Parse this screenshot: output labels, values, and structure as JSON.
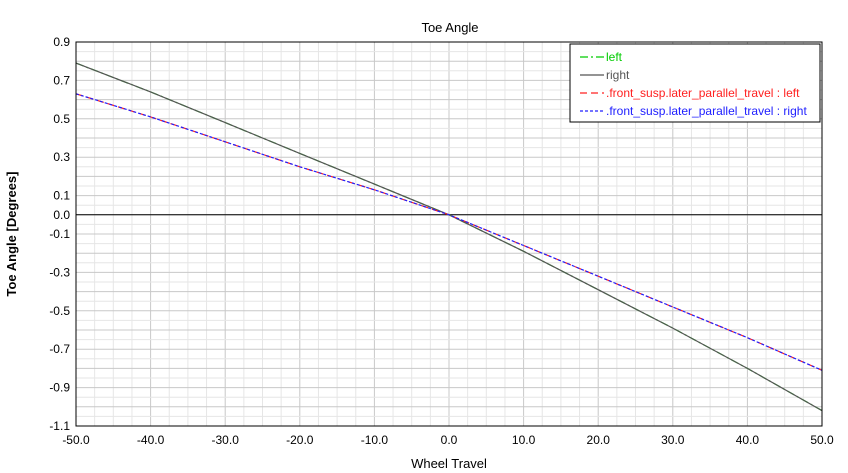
{
  "chart_data": {
    "type": "line",
    "title": "Toe Angle",
    "xlabel": "Wheel Travel",
    "ylabel": "Toe Angle [Degrees]",
    "xlim": [
      -50,
      50
    ],
    "ylim": [
      -1.1,
      0.9
    ],
    "xticks": [
      -50,
      -40,
      -30,
      -20,
      -10,
      0,
      10,
      20,
      30,
      40,
      50
    ],
    "xtick_labels": [
      "-50.0",
      "-40.0",
      "-30.0",
      "-20.0",
      "-10.0",
      "0.0",
      "10.0",
      "20.0",
      "30.0",
      "40.0",
      "50.0"
    ],
    "yticks": [
      0.9,
      0.7,
      0.5,
      0.3,
      0.1,
      0.0,
      -0.1,
      -0.3,
      -0.5,
      -0.7,
      -0.9,
      -1.1
    ],
    "ytick_labels": [
      "0.9",
      "0.7",
      "0.5",
      "0.3",
      "0.1",
      "0.0",
      "-0.1",
      "-0.3",
      "-0.5",
      "-0.7",
      "-0.9",
      "-1.1"
    ],
    "grid": true,
    "legend_position": "top-right",
    "series": [
      {
        "name": "left",
        "color": "#00cc00",
        "dash": "dash-dot",
        "x": [
          -50,
          -40,
          -30,
          -20,
          -10,
          0,
          10,
          20,
          30,
          40,
          50
        ],
        "y": [
          0.79,
          0.64,
          0.48,
          0.32,
          0.16,
          0.0,
          -0.19,
          -0.39,
          -0.59,
          -0.8,
          -1.02
        ]
      },
      {
        "name": "right",
        "color": "#555555",
        "dash": "solid",
        "x": [
          -50,
          -40,
          -30,
          -20,
          -10,
          0,
          10,
          20,
          30,
          40,
          50
        ],
        "y": [
          0.79,
          0.64,
          0.48,
          0.32,
          0.16,
          0.0,
          -0.19,
          -0.39,
          -0.59,
          -0.8,
          -1.02
        ]
      },
      {
        "name": ".front_susp.later_parallel_travel : left",
        "color": "#ff2020",
        "dash": "dashed",
        "x": [
          -50,
          -40,
          -30,
          -20,
          -10,
          0,
          10,
          20,
          30,
          40,
          50
        ],
        "y": [
          0.63,
          0.51,
          0.38,
          0.25,
          0.13,
          0.0,
          -0.16,
          -0.32,
          -0.48,
          -0.64,
          -0.81
        ]
      },
      {
        "name": ".front_susp.later_parallel_travel : right",
        "color": "#2020ff",
        "dash": "dotted",
        "x": [
          -50,
          -40,
          -30,
          -20,
          -10,
          0,
          10,
          20,
          30,
          40,
          50
        ],
        "y": [
          0.63,
          0.51,
          0.38,
          0.25,
          0.13,
          0.0,
          -0.16,
          -0.32,
          -0.48,
          -0.64,
          -0.81
        ]
      }
    ]
  }
}
